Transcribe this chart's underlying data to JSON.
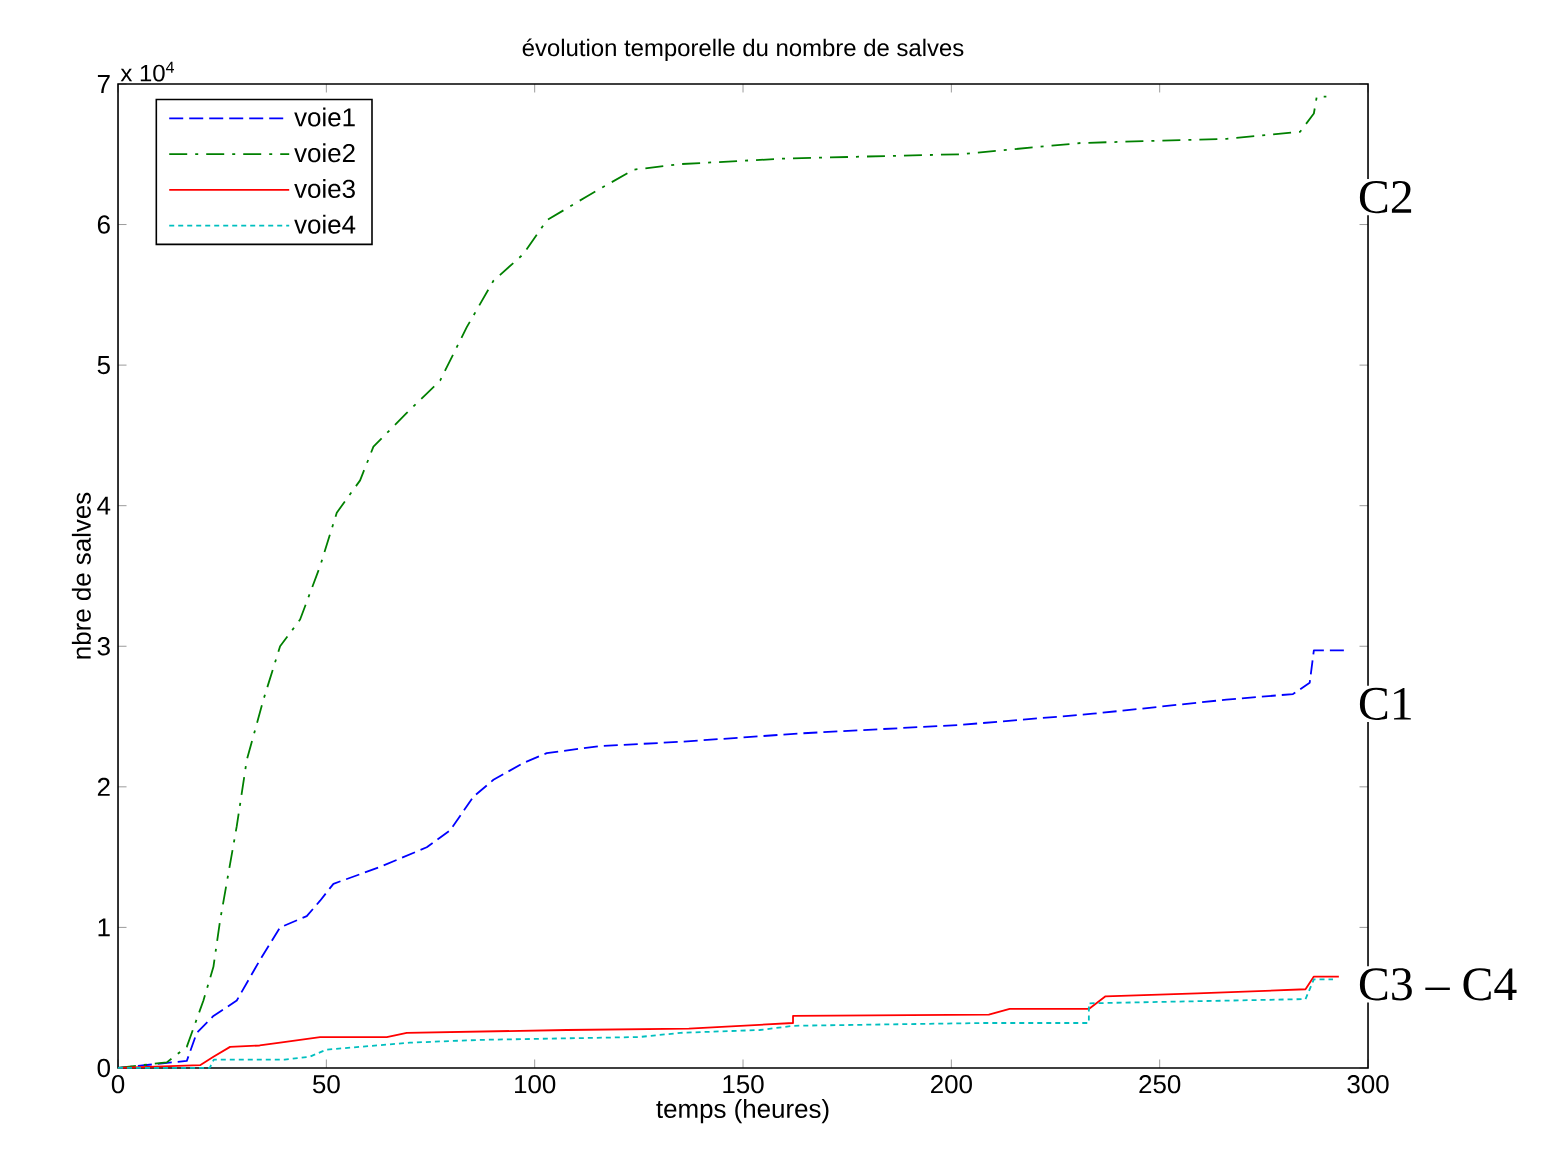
{
  "chart_data": {
    "type": "line",
    "title": "évolution temporelle du nombre de salves",
    "xlabel": "temps (heures)",
    "ylabel": "nbre de salves",
    "xlim": [
      0,
      300
    ],
    "ylim": [
      0,
      7
    ],
    "xticks": [
      0,
      50,
      100,
      150,
      200,
      250,
      300
    ],
    "yticks": [
      0,
      1,
      2,
      3,
      4,
      5,
      6,
      7
    ],
    "grid": false,
    "legend": "top left",
    "annotations": [
      "x 10$^{4}$",
      "C2",
      "C1",
      "C3 – C4"
    ],
    "series": [
      {
        "name": "voie1",
        "color": "#0000ff",
        "line_style": "dashed",
        "x": [
          0,
          16.5,
          18.9,
          22.9,
          28.5,
          34.1,
          38.9,
          45.3,
          48.5,
          51.7,
          62.9,
          74.1,
          79.7,
          85.3,
          90.1,
          97.3,
          102.9,
          115.7,
          134.9,
          163.7,
          202,
          234,
          266,
          282,
          286,
          287,
          295
        ],
        "values": [
          0,
          0.05,
          0.25,
          0.37,
          0.48,
          0.77,
          1.0,
          1.08,
          1.19,
          1.31,
          1.43,
          1.57,
          1.69,
          1.93,
          2.05,
          2.17,
          2.24,
          2.29,
          2.32,
          2.38,
          2.44,
          2.52,
          2.62,
          2.66,
          2.74,
          2.97,
          2.97
        ]
      },
      {
        "name": "voie2",
        "color": "#008000",
        "line_style": "dashdot",
        "x": [
          0,
          11.7,
          16.5,
          20.5,
          22.9,
          24.5,
          28.5,
          30.9,
          34.9,
          38.9,
          43.7,
          48.5,
          52.5,
          58.1,
          61.3,
          69.3,
          77.3,
          83.7,
          90.1,
          97.3,
          102.9,
          112.5,
          123.7,
          134.9,
          160.5,
          202,
          231,
          266,
          283.7,
          287,
          287.7,
          290
        ],
        "values": [
          0,
          0.04,
          0.15,
          0.48,
          0.72,
          1.05,
          1.72,
          2.19,
          2.62,
          3.0,
          3.19,
          3.57,
          3.95,
          4.18,
          4.42,
          4.66,
          4.89,
          5.27,
          5.6,
          5.79,
          6.03,
          6.2,
          6.39,
          6.43,
          6.47,
          6.5,
          6.58,
          6.61,
          6.66,
          6.79,
          6.91,
          6.91
        ]
      },
      {
        "name": "voie3",
        "color": "#ff0000",
        "line_style": "solid",
        "x": [
          0,
          19.7,
          22.9,
          26.9,
          34,
          38.9,
          48.5,
          64.5,
          69.3,
          107.7,
          137,
          162,
          162,
          209,
          214,
          233,
          237,
          259,
          285,
          287,
          293
        ],
        "values": [
          0,
          0.02,
          0.08,
          0.15,
          0.16,
          0.18,
          0.22,
          0.22,
          0.25,
          0.27,
          0.28,
          0.32,
          0.37,
          0.38,
          0.42,
          0.42,
          0.51,
          0.53,
          0.56,
          0.65,
          0.65
        ]
      },
      {
        "name": "voie4",
        "color": "#00bfbf",
        "line_style": "dotted",
        "x": [
          0,
          22,
          23,
          40,
          46,
          50,
          70,
          87,
          125,
          135,
          154,
          162,
          208,
          233,
          233,
          285,
          287,
          291.6
        ],
        "values": [
          0,
          0,
          0.06,
          0.06,
          0.08,
          0.13,
          0.18,
          0.2,
          0.22,
          0.25,
          0.27,
          0.3,
          0.32,
          0.32,
          0.46,
          0.49,
          0.63,
          0.63
        ]
      }
    ]
  }
}
